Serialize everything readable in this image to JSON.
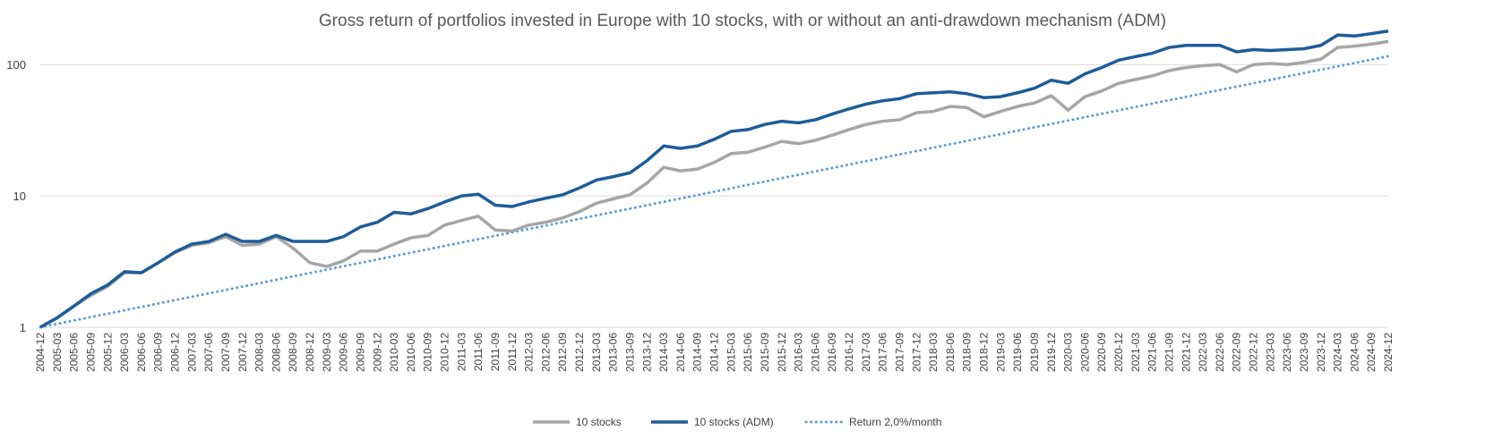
{
  "chart_data": {
    "type": "line",
    "title": "Gross return of portfolios invested in Europe with 10 stocks, with or without an anti-drawdown mechanism (ADM)",
    "xlabel": "",
    "ylabel": "",
    "y_scale": "log",
    "ylim": [
      1,
      200
    ],
    "yticks": [
      "1",
      "10",
      "100"
    ],
    "grid": "horizontal",
    "legend_position": "bottom",
    "x_start": "2004-12",
    "x_end": "2024-12",
    "x_tick_step_months": 3,
    "colors": {
      "stocks": "#a6a6a6",
      "adm": "#1f5c99",
      "reference": "#5b9bd5",
      "grid": "#d9d9d9",
      "text": "#404040"
    },
    "series": [
      {
        "name": "10 stocks",
        "style": "solid",
        "points": [
          [
            "2004-12",
            1.0
          ],
          [
            "2005-03",
            1.18
          ],
          [
            "2005-06",
            1.45
          ],
          [
            "2005-09",
            1.75
          ],
          [
            "2005-12",
            2.05
          ],
          [
            "2006-03",
            2.6
          ],
          [
            "2006-06",
            2.6
          ],
          [
            "2006-09",
            3.1
          ],
          [
            "2006-12",
            3.7
          ],
          [
            "2007-03",
            4.2
          ],
          [
            "2007-06",
            4.4
          ],
          [
            "2007-09",
            4.9
          ],
          [
            "2007-12",
            4.2
          ],
          [
            "2008-03",
            4.3
          ],
          [
            "2008-06",
            4.9
          ],
          [
            "2008-09",
            4.0
          ],
          [
            "2008-12",
            3.1
          ],
          [
            "2009-03",
            2.9
          ],
          [
            "2009-06",
            3.2
          ],
          [
            "2009-09",
            3.8
          ],
          [
            "2009-12",
            3.8
          ],
          [
            "2010-03",
            4.3
          ],
          [
            "2010-06",
            4.8
          ],
          [
            "2010-09",
            5.0
          ],
          [
            "2010-12",
            6.0
          ],
          [
            "2011-03",
            6.5
          ],
          [
            "2011-06",
            7.0
          ],
          [
            "2011-09",
            5.5
          ],
          [
            "2011-12",
            5.4
          ],
          [
            "2012-03",
            6.0
          ],
          [
            "2012-06",
            6.3
          ],
          [
            "2012-09",
            6.8
          ],
          [
            "2012-12",
            7.6
          ],
          [
            "2013-03",
            8.8
          ],
          [
            "2013-06",
            9.5
          ],
          [
            "2013-09",
            10.2
          ],
          [
            "2013-12",
            12.5
          ],
          [
            "2014-03",
            16.5
          ],
          [
            "2014-06",
            15.5
          ],
          [
            "2014-09",
            16.0
          ],
          [
            "2014-12",
            18.0
          ],
          [
            "2015-03",
            21.0
          ],
          [
            "2015-06",
            21.5
          ],
          [
            "2015-09",
            23.5
          ],
          [
            "2015-12",
            26.0
          ],
          [
            "2016-03",
            25.0
          ],
          [
            "2016-06",
            26.5
          ],
          [
            "2016-09",
            29.0
          ],
          [
            "2016-12",
            32.0
          ],
          [
            "2017-03",
            35.0
          ],
          [
            "2017-06",
            37.0
          ],
          [
            "2017-09",
            38.0
          ],
          [
            "2017-12",
            43.0
          ],
          [
            "2018-03",
            44.0
          ],
          [
            "2018-06",
            48.0
          ],
          [
            "2018-09",
            47.0
          ],
          [
            "2018-12",
            40.0
          ],
          [
            "2019-03",
            44.0
          ],
          [
            "2019-06",
            48.0
          ],
          [
            "2019-09",
            51.0
          ],
          [
            "2019-12",
            58.0
          ],
          [
            "2020-03",
            45.0
          ],
          [
            "2020-06",
            57.0
          ],
          [
            "2020-09",
            63.0
          ],
          [
            "2020-12",
            72.0
          ],
          [
            "2021-03",
            77.0
          ],
          [
            "2021-06",
            82.0
          ],
          [
            "2021-09",
            90.0
          ],
          [
            "2021-12",
            95.0
          ],
          [
            "2022-03",
            98.0
          ],
          [
            "2022-06",
            100.0
          ],
          [
            "2022-09",
            88.0
          ],
          [
            "2022-12",
            100.0
          ],
          [
            "2023-03",
            102.0
          ],
          [
            "2023-06",
            100.0
          ],
          [
            "2023-09",
            104.0
          ],
          [
            "2023-12",
            110.0
          ],
          [
            "2024-03",
            135.0
          ],
          [
            "2024-06",
            138.0
          ],
          [
            "2024-09",
            143.0
          ],
          [
            "2024-12",
            150.0
          ]
        ]
      },
      {
        "name": "10 stocks (ADM)",
        "style": "solid",
        "points": [
          [
            "2004-12",
            1.0
          ],
          [
            "2005-03",
            1.18
          ],
          [
            "2005-06",
            1.45
          ],
          [
            "2005-09",
            1.8
          ],
          [
            "2005-12",
            2.1
          ],
          [
            "2006-03",
            2.65
          ],
          [
            "2006-06",
            2.6
          ],
          [
            "2006-09",
            3.1
          ],
          [
            "2006-12",
            3.75
          ],
          [
            "2007-03",
            4.3
          ],
          [
            "2007-06",
            4.5
          ],
          [
            "2007-09",
            5.1
          ],
          [
            "2007-12",
            4.5
          ],
          [
            "2008-03",
            4.5
          ],
          [
            "2008-06",
            5.0
          ],
          [
            "2008-09",
            4.5
          ],
          [
            "2008-12",
            4.5
          ],
          [
            "2009-03",
            4.5
          ],
          [
            "2009-06",
            4.9
          ],
          [
            "2009-09",
            5.8
          ],
          [
            "2009-12",
            6.3
          ],
          [
            "2010-03",
            7.5
          ],
          [
            "2010-06",
            7.3
          ],
          [
            "2010-09",
            8.0
          ],
          [
            "2010-12",
            9.0
          ],
          [
            "2011-03",
            10.0
          ],
          [
            "2011-06",
            10.3
          ],
          [
            "2011-09",
            8.5
          ],
          [
            "2011-12",
            8.3
          ],
          [
            "2012-03",
            9.0
          ],
          [
            "2012-06",
            9.6
          ],
          [
            "2012-09",
            10.2
          ],
          [
            "2012-12",
            11.5
          ],
          [
            "2013-03",
            13.2
          ],
          [
            "2013-06",
            14.0
          ],
          [
            "2013-09",
            15.0
          ],
          [
            "2013-12",
            18.5
          ],
          [
            "2014-03",
            24.0
          ],
          [
            "2014-06",
            23.0
          ],
          [
            "2014-09",
            24.0
          ],
          [
            "2014-12",
            27.0
          ],
          [
            "2015-03",
            31.0
          ],
          [
            "2015-06",
            32.0
          ],
          [
            "2015-09",
            35.0
          ],
          [
            "2015-12",
            37.0
          ],
          [
            "2016-03",
            36.0
          ],
          [
            "2016-06",
            38.0
          ],
          [
            "2016-09",
            42.0
          ],
          [
            "2016-12",
            46.0
          ],
          [
            "2017-03",
            50.0
          ],
          [
            "2017-06",
            53.0
          ],
          [
            "2017-09",
            55.0
          ],
          [
            "2017-12",
            60.0
          ],
          [
            "2018-03",
            61.0
          ],
          [
            "2018-06",
            62.0
          ],
          [
            "2018-09",
            60.0
          ],
          [
            "2018-12",
            56.0
          ],
          [
            "2019-03",
            57.0
          ],
          [
            "2019-06",
            61.0
          ],
          [
            "2019-09",
            66.0
          ],
          [
            "2019-12",
            76.0
          ],
          [
            "2020-03",
            72.0
          ],
          [
            "2020-06",
            85.0
          ],
          [
            "2020-09",
            95.0
          ],
          [
            "2020-12",
            108.0
          ],
          [
            "2021-03",
            115.0
          ],
          [
            "2021-06",
            122.0
          ],
          [
            "2021-09",
            135.0
          ],
          [
            "2021-12",
            140.0
          ],
          [
            "2022-03",
            140.0
          ],
          [
            "2022-06",
            140.0
          ],
          [
            "2022-09",
            125.0
          ],
          [
            "2022-12",
            130.0
          ],
          [
            "2023-03",
            128.0
          ],
          [
            "2023-06",
            130.0
          ],
          [
            "2023-09",
            132.0
          ],
          [
            "2023-12",
            140.0
          ],
          [
            "2024-03",
            168.0
          ],
          [
            "2024-06",
            165.0
          ],
          [
            "2024-09",
            172.0
          ],
          [
            "2024-12",
            180.0
          ]
        ]
      },
      {
        "name": "Return 2,0%/month",
        "style": "dotted",
        "start_value": 1.0,
        "monthly_rate": 0.02
      }
    ]
  }
}
